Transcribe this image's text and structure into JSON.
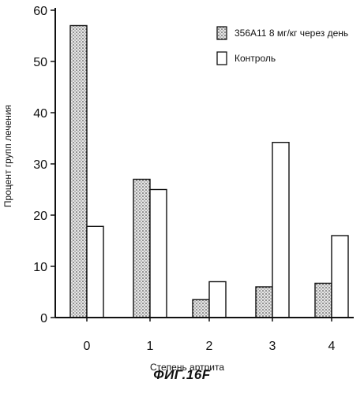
{
  "chart_data": {
    "type": "bar",
    "categories": [
      "0",
      "1",
      "2",
      "3",
      "4"
    ],
    "series": [
      {
        "name": "356A11 8 мг/кг через день",
        "values": [
          57,
          27,
          3.5,
          6,
          6.7
        ],
        "pattern": "dotted"
      },
      {
        "name": "Контроль",
        "values": [
          17.8,
          25,
          7,
          34.2,
          16
        ],
        "pattern": "plain"
      }
    ],
    "xlabel": "Степень артрита",
    "ylabel": "Процент  групп лечения",
    "ylim": [
      0,
      60
    ],
    "yticks": [
      "0",
      "10",
      "20",
      "30",
      "40",
      "50",
      "60"
    ],
    "legend_position": "top-right",
    "grid": false
  },
  "caption": "ФИГ.16F",
  "colors": {
    "ink": "#111111",
    "dot_fill": "#e8e8e8",
    "plain_fill": "#ffffff"
  }
}
